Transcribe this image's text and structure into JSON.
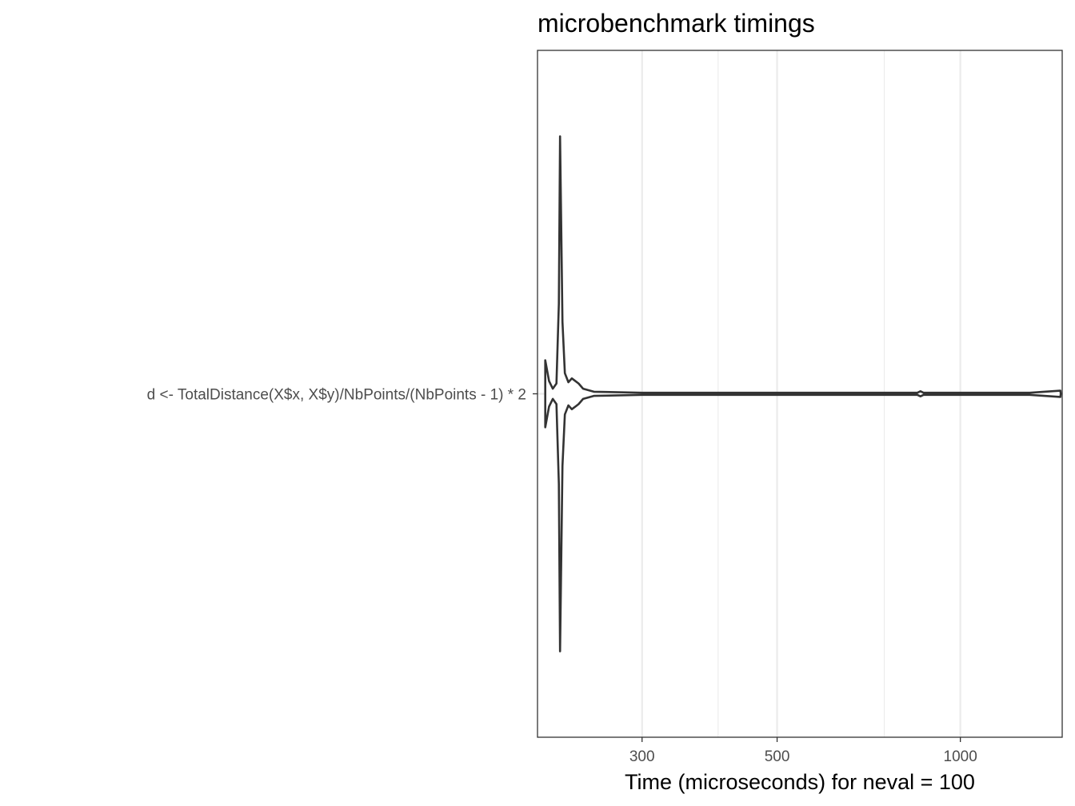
{
  "chart_data": {
    "type": "violin",
    "title": "microbenchmark timings",
    "xlabel": "Time (microseconds) for neval = 100",
    "ylabel": "",
    "x_scale": "log10",
    "xlim": [
      202,
      1470
    ],
    "x_ticks": [
      {
        "value": 300,
        "label": "300"
      },
      {
        "value": 500,
        "label": "500"
      },
      {
        "value": 1000,
        "label": "1000"
      }
    ],
    "x_minor_ticks": [
      400,
      750
    ],
    "categories": [
      "d <- TotalDistance(X$x, X$y)/NbPoints/(NbPoints - 1) * 2"
    ],
    "grid": true,
    "legend": "none",
    "colors": {
      "outline": "#333333",
      "grid_major": "#ebebeb",
      "panel_border": "#333333"
    },
    "series": [
      {
        "category": "d <- TotalDistance(X$x, X$y)/NbPoints/(NbPoints - 1) * 2",
        "violin_profile": [
          {
            "x": 208,
            "density": 0.13
          },
          {
            "x": 211,
            "density": 0.05
          },
          {
            "x": 214,
            "density": 0.02
          },
          {
            "x": 217,
            "density": 0.04
          },
          {
            "x": 219,
            "density": 0.35
          },
          {
            "x": 220,
            "density": 1.0
          },
          {
            "x": 222,
            "density": 0.28
          },
          {
            "x": 224,
            "density": 0.08
          },
          {
            "x": 227,
            "density": 0.045
          },
          {
            "x": 230,
            "density": 0.06
          },
          {
            "x": 233,
            "density": 0.05
          },
          {
            "x": 236,
            "density": 0.04
          },
          {
            "x": 240,
            "density": 0.02
          },
          {
            "x": 250,
            "density": 0.008
          },
          {
            "x": 300,
            "density": 0.004
          },
          {
            "x": 500,
            "density": 0.004
          },
          {
            "x": 850,
            "density": 0.004
          },
          {
            "x": 860,
            "density": 0.01
          },
          {
            "x": 870,
            "density": 0.004
          },
          {
            "x": 1000,
            "density": 0.004
          },
          {
            "x": 1300,
            "density": 0.004
          },
          {
            "x": 1460,
            "density": 0.012
          },
          {
            "x": 1462,
            "density": 0.0
          }
        ]
      }
    ]
  }
}
